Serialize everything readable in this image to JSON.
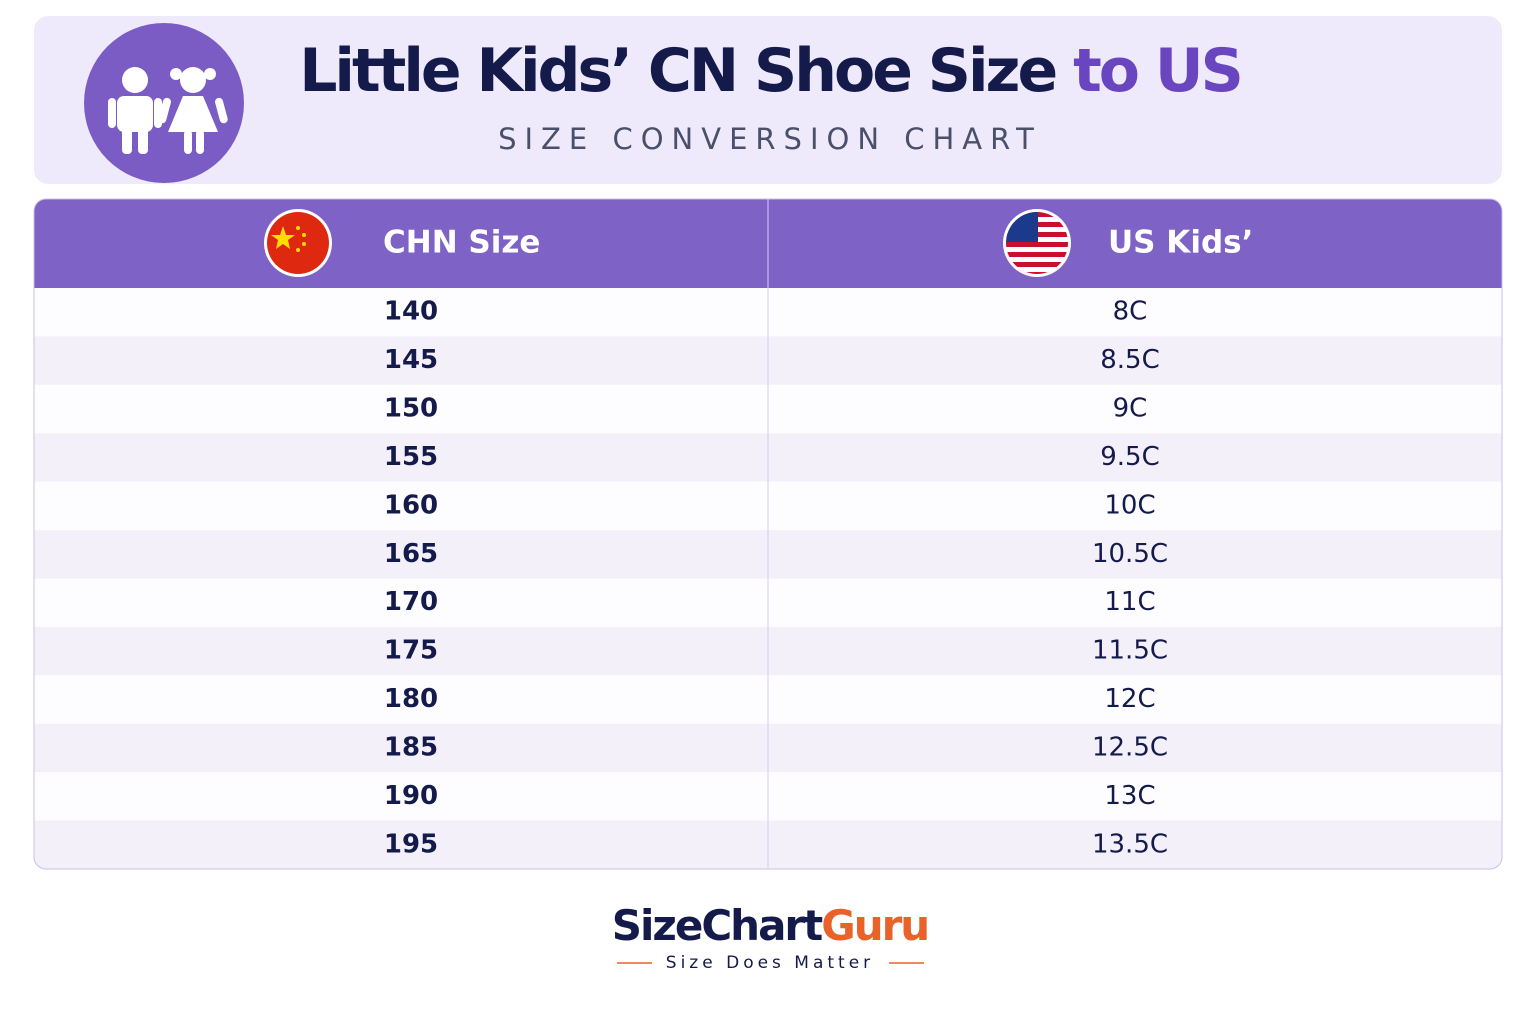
{
  "header": {
    "title_main": "Little Kids’ CN Shoe Size",
    "title_accent": "to US",
    "subtitle": "SIZE CONVERSION CHART"
  },
  "table": {
    "columns": [
      "CHN Size",
      "US Kids’"
    ],
    "rows": [
      [
        140,
        "8C"
      ],
      [
        145,
        "8.5C"
      ],
      [
        150,
        "9C"
      ],
      [
        155,
        "9.5C"
      ],
      [
        160,
        "10C"
      ],
      [
        165,
        "10.5C"
      ],
      [
        170,
        "11C"
      ],
      [
        175,
        "11.5C"
      ],
      [
        180,
        "12C"
      ],
      [
        185,
        "12.5C"
      ],
      [
        190,
        "13C"
      ],
      [
        195,
        "13.5C"
      ]
    ]
  },
  "footer": {
    "brand_main": "SizeChart",
    "brand_accent": "Guru",
    "tagline": "Size Does Matter"
  }
}
